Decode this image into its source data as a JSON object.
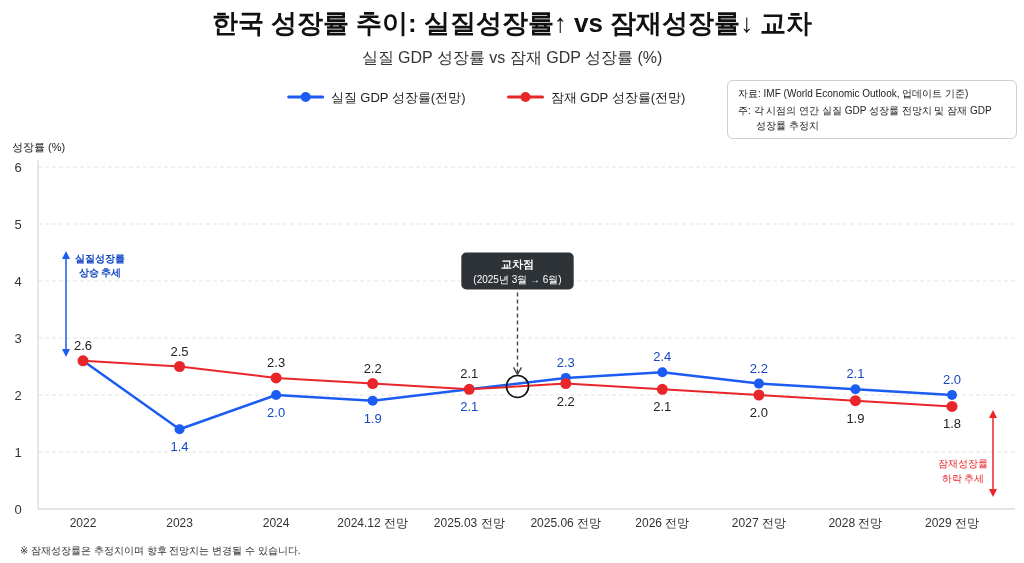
{
  "chart_data": {
    "type": "line",
    "title": "한국 성장률 추이: 실질성장률↑ vs 잠재성장률↓ 교차",
    "subtitle": "실질 GDP 성장률 vs 잠재 GDP 성장률 (%)",
    "ylabel": "성장률 (%)",
    "categories": [
      "2022",
      "2023",
      "2024",
      "2024.12 전망",
      "2025.03 전망",
      "2025.06 전망",
      "2026 전망",
      "2027 전망",
      "2028 전망",
      "2029 전망"
    ],
    "series": [
      {
        "name": "실질 GDP 성장률(전망)",
        "color": "#1d5cf2",
        "values": [
          2.6,
          1.4,
          2.0,
          1.9,
          2.1,
          2.3,
          2.4,
          2.2,
          2.1,
          2.0
        ],
        "value_labels": [
          null,
          "1.4",
          "2.0",
          "1.9",
          "2.1",
          "2.3",
          "2.4",
          "2.2",
          "2.1",
          "2.0"
        ]
      },
      {
        "name": "잠재 GDP 성장률(전망)",
        "color": "#e8262a",
        "values": [
          2.6,
          2.5,
          2.3,
          2.2,
          2.1,
          2.2,
          2.1,
          2.0,
          1.9,
          1.8
        ],
        "value_labels": [
          "2.6",
          "2.5",
          "2.3",
          "2.2",
          "2.1",
          "2.2",
          "2.1",
          "2.0",
          "1.9",
          "1.8"
        ]
      }
    ],
    "ylim": [
      0,
      6
    ],
    "yticks": [
      0,
      1,
      2,
      3,
      4,
      5,
      6
    ],
    "grid": "y",
    "legend": "top",
    "marker": "circle",
    "line_style": "solid",
    "annotations": [
      "교차점\n(2025년 3월 → 6월)",
      "실질성장률\n상승 추세",
      "잠재성장률\n하락 추세",
      "자료: IMF (World Economic Outlook, 업데이트 기준)",
      "주: 각 시점의 연간 실질 GDP 성장률 전망치 및 잠재 GDP 성장률 추정치",
      "※ 잠재성장률은 추정치이며 향후 전망치는 변경될 수 있습니다."
    ]
  }
}
